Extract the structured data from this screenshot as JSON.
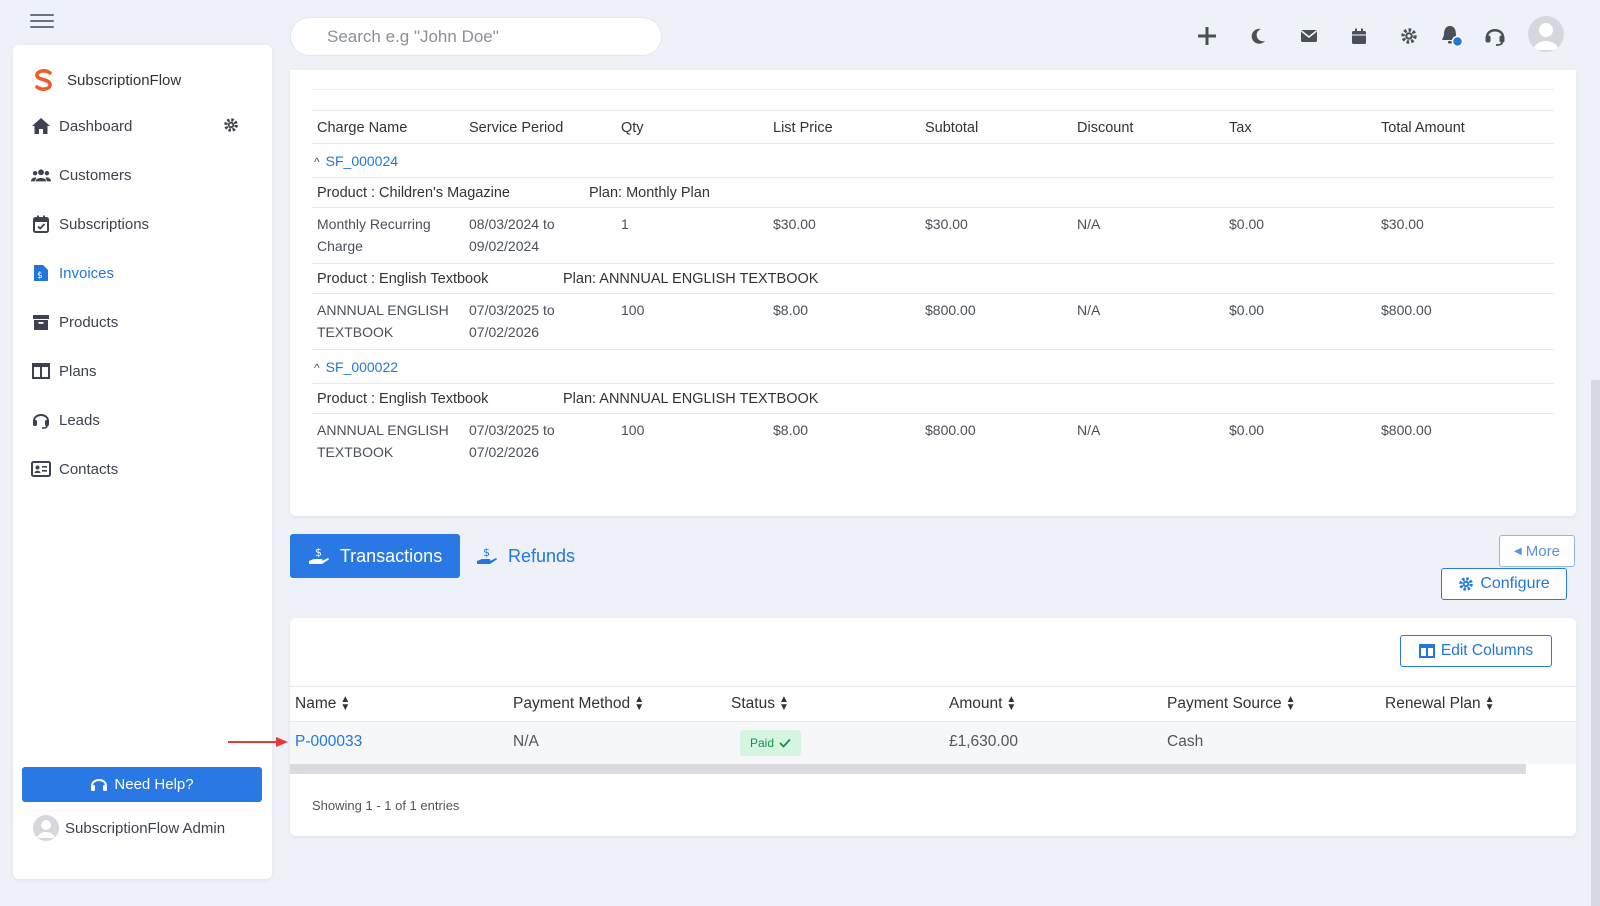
{
  "app": {
    "name": "SubscriptionFlow"
  },
  "search": {
    "placeholder": "Search e.g \"John Doe\""
  },
  "sidebar": {
    "items": [
      {
        "label": "Dashboard",
        "icon": "home-icon"
      },
      {
        "label": "Customers",
        "icon": "users-icon"
      },
      {
        "label": "Subscriptions",
        "icon": "calendar-check-icon"
      },
      {
        "label": "Invoices",
        "icon": "invoice-icon",
        "active": true
      },
      {
        "label": "Products",
        "icon": "archive-icon"
      },
      {
        "label": "Plans",
        "icon": "columns-icon"
      },
      {
        "label": "Leads",
        "icon": "headset-icon"
      },
      {
        "label": "Contacts",
        "icon": "id-card-icon"
      }
    ],
    "help_label": "Need Help?",
    "admin_name": "SubscriptionFlow Admin"
  },
  "charges": {
    "headers": [
      "Charge Name",
      "Service Period",
      "Qty",
      "List Price",
      "Subtotal",
      "Discount",
      "Tax",
      "Total Amount"
    ],
    "groups": [
      {
        "subscription": "SF_000024",
        "products": [
          {
            "product": "Product : Children's Magazine",
            "plan": "Plan: Monthly Plan",
            "row": {
              "name_1": "Monthly Recurring",
              "name_2": "Charge",
              "period_1": "08/03/2024 to",
              "period_2": "09/02/2024",
              "qty": "1",
              "list_price": "$30.00",
              "subtotal": "$30.00",
              "discount": "N/A",
              "tax": "$0.00",
              "total": "$30.00"
            }
          },
          {
            "product": "Product : English Textbook",
            "plan": "Plan: ANNNUAL ENGLISH TEXTBOOK",
            "row": {
              "name_1": "ANNNUAL ENGLISH",
              "name_2": "TEXTBOOK",
              "period_1": "07/03/2025 to",
              "period_2": "07/02/2026",
              "qty": "100",
              "list_price": "$8.00",
              "subtotal": "$800.00",
              "discount": "N/A",
              "tax": "$0.00",
              "total": "$800.00"
            }
          }
        ]
      },
      {
        "subscription": "SF_000022",
        "products": [
          {
            "product": "Product : English Textbook",
            "plan": "Plan: ANNNUAL ENGLISH TEXTBOOK",
            "row": {
              "name_1": "ANNNUAL ENGLISH",
              "name_2": "TEXTBOOK",
              "period_1": "07/03/2025 to",
              "period_2": "07/02/2026",
              "qty": "100",
              "list_price": "$8.00",
              "subtotal": "$800.00",
              "discount": "N/A",
              "tax": "$0.00",
              "total": "$800.00"
            }
          }
        ]
      }
    ]
  },
  "tabs": {
    "transactions": "Transactions",
    "refunds": "Refunds"
  },
  "buttons": {
    "more": "More",
    "configure": "Configure",
    "edit_columns": "Edit Columns"
  },
  "transactions": {
    "headers": [
      "Name",
      "Payment Method",
      "Status",
      "Amount",
      "Payment Source",
      "Renewal Plan"
    ],
    "rows": [
      {
        "name": "P-000033",
        "payment_method": "N/A",
        "status": "Paid",
        "amount": "£1,630.00",
        "payment_source": "Cash",
        "renewal_plan": ""
      }
    ],
    "entries": "Showing 1 - 1 of 1 entries"
  },
  "colors": {
    "primary": "#2a78e4",
    "link": "#2277d9",
    "paid_bg": "#d6f5e1",
    "paid_text": "#1b8a4a",
    "arrow": "#e53935",
    "bg": "#eef1f8"
  }
}
